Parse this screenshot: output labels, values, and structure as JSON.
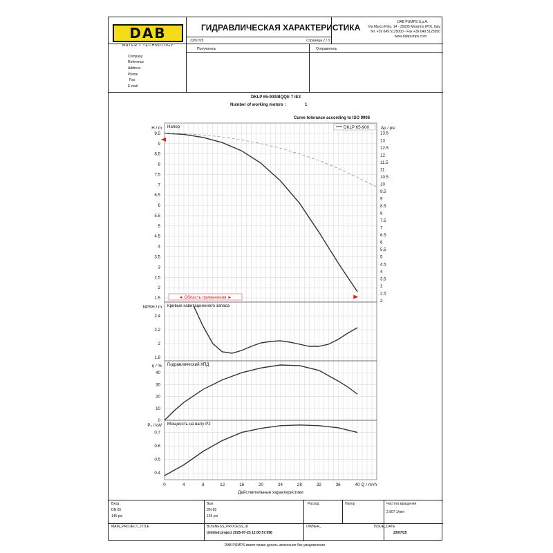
{
  "header": {
    "logo_text": "DAB",
    "logo_subtitle": "WATER • TECHNOLOGY",
    "title": "ГИДРАВЛИЧЕСКАЯ ХАРАКТЕРИСТИКА",
    "company_name": "DAB PUMPS S.p.A.",
    "address": "Via Marco Polo, 14 - 35035 Mestrino (PD), Italy",
    "phone_fax": "Tel. +39 049 5125000 - Fax +39 049 5125950",
    "website": "www.dabpumps.com",
    "date": "23/07/25",
    "page": "Страница 2 / 3"
  },
  "info": {
    "receiver_label": "Получатель",
    "sender_label": "Отправитель",
    "fields": [
      "Company",
      "Reference",
      "Address",
      "Phone",
      "Fax",
      "E-mail"
    ]
  },
  "pump": {
    "model_line": "DKLP 65-900/BQQE T IE3",
    "motors_label": "Number of working motors :",
    "motors_value": "1",
    "tolerance": "Curve tolerance according to ISO 9906"
  },
  "chart_data": {
    "type": "line",
    "legend": "DKLP 65-900",
    "xlabel": "Действительные характеристики",
    "x_unit": "Q / m³/h",
    "x_ticks": [
      0,
      4,
      8,
      12,
      16,
      20,
      24,
      28,
      32,
      36,
      40
    ],
    "xlim": [
      0,
      44
    ],
    "panels": [
      {
        "name": "Напор",
        "ylabel": "H / m",
        "right_label": "Δp / psi",
        "ylim": [
          1.3,
          10
        ],
        "y_ticks": [
          1.5,
          2,
          2.5,
          3,
          3.5,
          4,
          4.5,
          5,
          5.5,
          6,
          6.5,
          7,
          7.5,
          8,
          8.5,
          9,
          9.5
        ],
        "right_ticks": [
          2,
          2.5,
          3,
          3.5,
          4,
          4.5,
          5,
          5.5,
          6,
          6.5,
          7,
          7.5,
          8,
          8.5,
          9,
          9.5,
          10,
          10.5,
          11,
          11.5,
          12,
          12.5,
          13,
          13.5
        ],
        "series": [
          {
            "style": "solid",
            "x": [
              0,
              4,
              8,
              12,
              16,
              20,
              24,
              28,
              32,
              36,
              40
            ],
            "y": [
              9.5,
              9.45,
              9.3,
              9.05,
              8.65,
              8.05,
              7.2,
              6.1,
              4.7,
              3.2,
              1.8
            ]
          },
          {
            "style": "dashed",
            "x": [
              0,
              4,
              8,
              12,
              16,
              20,
              24,
              28,
              32,
              36,
              40,
              44
            ],
            "y": [
              9.5,
              9.48,
              9.42,
              9.32,
              9.18,
              9.0,
              8.78,
              8.5,
              8.18,
              7.8,
              7.36,
              6.9
            ]
          }
        ],
        "application_range_label": "Область применения"
      },
      {
        "name": "Кривые кавитационного запаса",
        "ylabel": "NPSH / m",
        "ylim": [
          1.75,
          2.6
        ],
        "y_ticks": [
          1.8,
          2,
          2.2,
          2.4
        ],
        "series": [
          {
            "style": "solid",
            "x": [
              6,
              8,
              10,
              12,
              14,
              16,
              18,
              20,
              22,
              24,
              26,
              28,
              30,
              32,
              34,
              36,
              38,
              40
            ],
            "y": [
              2.55,
              2.25,
              2.0,
              1.88,
              1.86,
              1.9,
              1.96,
              2.01,
              2.03,
              2.04,
              2.02,
              1.99,
              1.96,
              1.96,
              1.99,
              2.06,
              2.15,
              2.23
            ]
          }
        ]
      },
      {
        "name": "Гидравлический КПД",
        "ylabel": "η / %",
        "ylim": [
          0,
          50
        ],
        "y_ticks": [
          0,
          10,
          20,
          30,
          40
        ],
        "series": [
          {
            "style": "solid",
            "x": [
              0,
              2,
              4,
              8,
              12,
              16,
              20,
              24,
              28,
              32,
              36,
              38,
              40
            ],
            "y": [
              0,
              8,
              15,
              26,
              34,
              40,
              44,
              46.5,
              46,
              42,
              33,
              28,
              22
            ]
          }
        ]
      },
      {
        "name": "Мощность на валу P2",
        "ylabel": "P₂ / kW",
        "ylim": [
          0.35,
          0.79
        ],
        "y_ticks": [
          0.4,
          0.5,
          0.6,
          0.7
        ],
        "series": [
          {
            "style": "solid",
            "x": [
              0,
              4,
              8,
              12,
              16,
              20,
              24,
              28,
              32,
              36,
              40
            ],
            "y": [
              0.38,
              0.46,
              0.56,
              0.64,
              0.7,
              0.73,
              0.75,
              0.755,
              0.75,
              0.735,
              0.7
            ]
          }
        ]
      }
    ]
  },
  "footer": {
    "type_label": "Вход",
    "type_dn": "DN 65",
    "type_psi": "145 psi",
    "out_label": "Вых",
    "out_dn": "DN 65",
    "out_psi": "145 psi",
    "flow_label": "Расход",
    "head_label": "Напор",
    "speed_label": "Частота вращения",
    "speed_value": "2.907 1/min",
    "main_project_label": "MAIN_PROJECT_TITLE",
    "business_process_label": "BUSINESS_PROCESS_ID",
    "business_process_value": "Untitled project 2025-07-23 12:00:57.996",
    "owner_label": "OWNER_",
    "issue_date_label": "ISSUE_DATE",
    "issue_date_value": "23/07/25",
    "disclaimer": "DAB PUMPS имеет право делать изменения без уведомления."
  }
}
